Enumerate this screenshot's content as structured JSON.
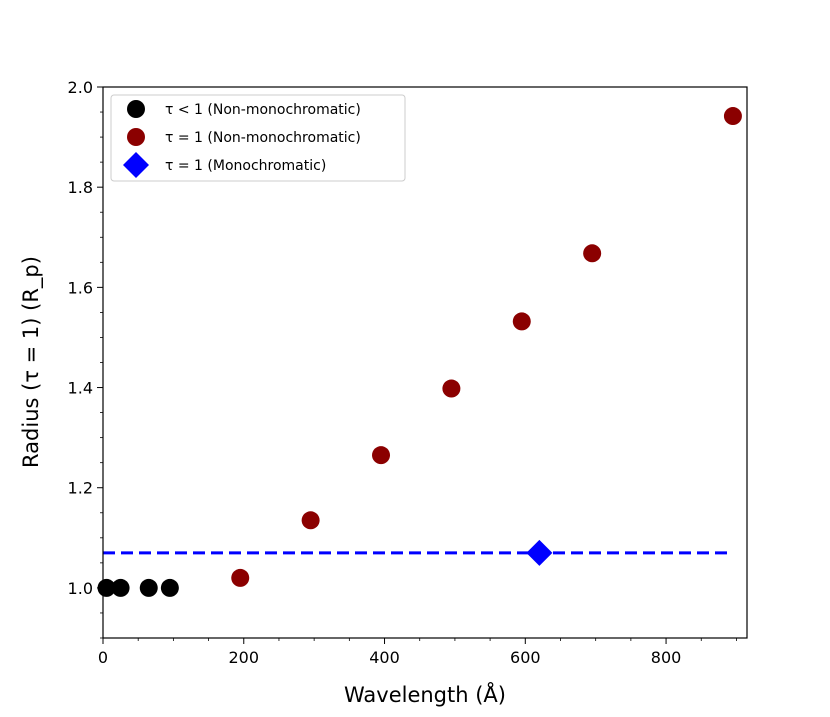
{
  "chart_data": {
    "type": "scatter",
    "xlabel": "Wavelength (Å)",
    "ylabel": "Radius (τ = 1) (R_p)",
    "xlim": [
      0,
      915
    ],
    "ylim": [
      0.9,
      2.0
    ],
    "x_ticks": [
      "0",
      "200",
      "400",
      "600",
      "800"
    ],
    "y_ticks": [
      "1.0",
      "1.2",
      "1.4",
      "1.6",
      "1.8",
      "2.0"
    ],
    "legend_position": "top-left",
    "series": [
      {
        "name": "τ < 1 (Non-monochromatic)",
        "marker": "circle",
        "color": "#000000",
        "x": [
          5,
          25,
          65,
          95
        ],
        "y": [
          1.0,
          1.0,
          1.0,
          1.0
        ]
      },
      {
        "name": "τ = 1 (Non-monochromatic)",
        "marker": "circle",
        "color": "#8b0000",
        "x": [
          195,
          295,
          395,
          495,
          595,
          695,
          895
        ],
        "y": [
          1.02,
          1.135,
          1.265,
          1.398,
          1.532,
          1.668,
          1.942
        ]
      },
      {
        "name": "τ = 1 (Monochromatic)",
        "marker": "diamond",
        "color": "#0000ff",
        "x": [
          620
        ],
        "y": [
          1.07
        ]
      }
    ],
    "reference_line": {
      "y": 1.07,
      "x_range": [
        0,
        895
      ],
      "style": "dashed",
      "color": "#0000ff"
    }
  }
}
